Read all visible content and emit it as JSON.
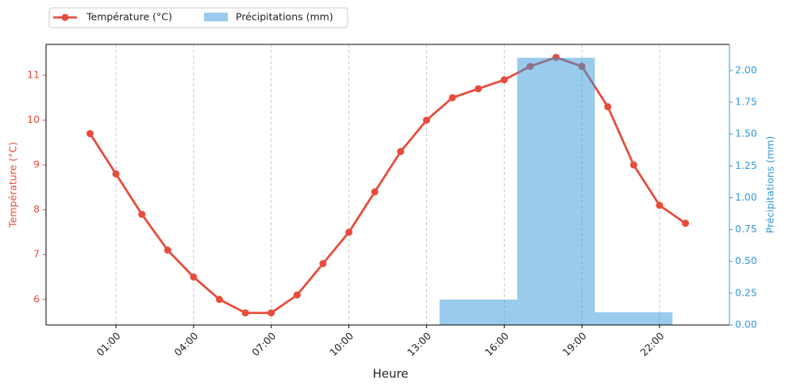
{
  "chart_data": {
    "type": "combo",
    "xlabel": "Heure",
    "ylabel": "Température (°C)",
    "y2label": "Précipitations (mm)",
    "xlim": [
      -1.7,
      24.7
    ],
    "xticks": [
      {
        "value": 1,
        "label": "01:00"
      },
      {
        "value": 4,
        "label": "04:00"
      },
      {
        "value": 7,
        "label": "07:00"
      },
      {
        "value": 10,
        "label": "10:00"
      },
      {
        "value": 13,
        "label": "13:00"
      },
      {
        "value": 16,
        "label": "16:00"
      },
      {
        "value": 19,
        "label": "19:00"
      },
      {
        "value": 22,
        "label": "22:00"
      }
    ],
    "ylim": [
      5.43,
      11.69
    ],
    "yticks": [
      6,
      7,
      8,
      9,
      10,
      11
    ],
    "y2lim": [
      0,
      2.205
    ],
    "y2ticks": [
      {
        "value": 0,
        "label": "0.00"
      },
      {
        "value": 0.25,
        "label": "0.25"
      },
      {
        "value": 0.5,
        "label": "0.50"
      },
      {
        "value": 0.75,
        "label": "0.75"
      },
      {
        "value": 1,
        "label": "1.00"
      },
      {
        "value": 1.25,
        "label": "1.25"
      },
      {
        "value": 1.5,
        "label": "1.50"
      },
      {
        "value": 1.75,
        "label": "1.75"
      },
      {
        "value": 2,
        "label": "2.00"
      }
    ],
    "grid": "x",
    "legend": "upper left outside",
    "series": [
      {
        "name": "Température (°C)",
        "type": "line",
        "color": "#e74c3c",
        "x": [
          0,
          1,
          2,
          3,
          4,
          5,
          6,
          7,
          8,
          9,
          10,
          11,
          12,
          13,
          14,
          15,
          16,
          17,
          18,
          19,
          20,
          21,
          22,
          23
        ],
        "values": [
          9.7,
          8.8,
          7.9,
          7.1,
          6.5,
          6.0,
          5.7,
          5.7,
          6.1,
          6.8,
          7.5,
          8.4,
          9.3,
          10.0,
          10.5,
          10.7,
          10.9,
          11.2,
          11.4,
          11.2,
          10.3,
          9.0,
          8.1,
          7.7
        ]
      },
      {
        "name": "Précipitations (mm)",
        "type": "bar",
        "axis": "y2",
        "color": "#3498db",
        "x": [
          0,
          3,
          6,
          9,
          12,
          15,
          18,
          21
        ],
        "values": [
          0,
          0,
          0,
          0,
          0,
          0.2,
          2.1,
          0.1
        ]
      }
    ]
  }
}
